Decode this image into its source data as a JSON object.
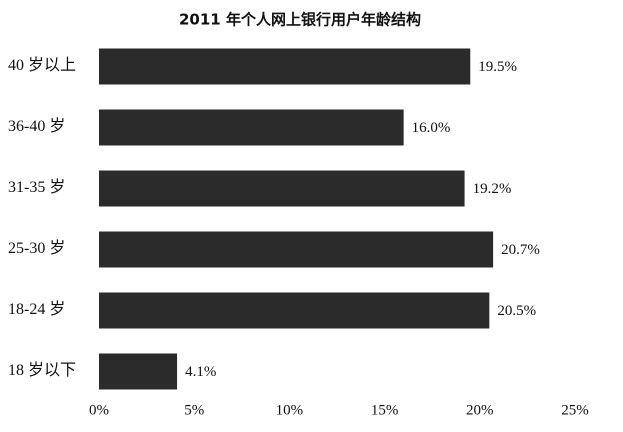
{
  "chart_data": {
    "type": "bar",
    "title": "2011 年个人网上银行用户年龄结构",
    "categories": [
      "40 岁以上",
      "36-40 岁",
      "31-35 岁",
      "25-30 岁",
      "18-24 岁",
      "18 岁以下"
    ],
    "values": [
      19.5,
      16.0,
      19.2,
      20.7,
      20.5,
      4.1
    ],
    "value_labels": [
      "19.5%",
      "16.0%",
      "19.2%",
      "20.7%",
      "20.5%",
      "4.1%"
    ],
    "color": "#2b2b2b",
    "xlim": [
      0,
      25
    ],
    "xticks": [
      {
        "value": 0,
        "label": "0%"
      },
      {
        "value": 5,
        "label": "5%"
      },
      {
        "value": 10,
        "label": "10%"
      },
      {
        "value": 15,
        "label": "15%"
      },
      {
        "value": 20,
        "label": "20%"
      },
      {
        "value": 25,
        "label": "25%"
      }
    ]
  }
}
